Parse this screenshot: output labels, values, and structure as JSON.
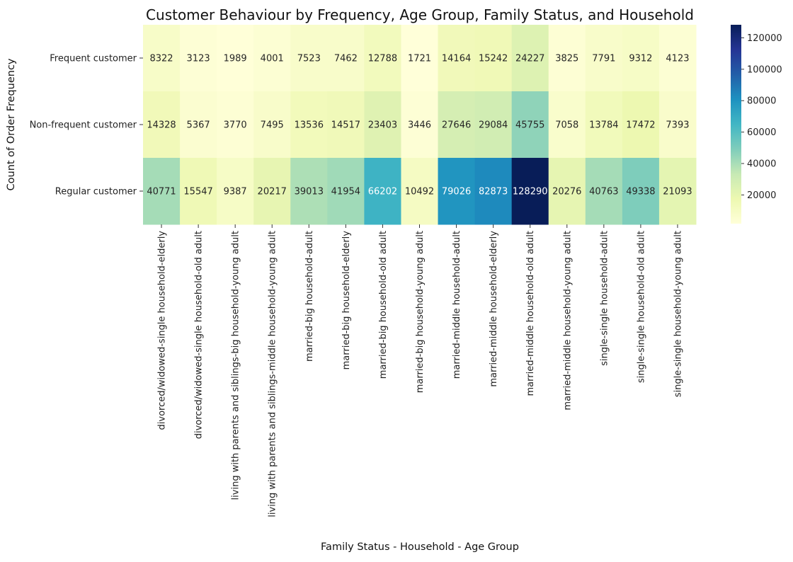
{
  "chart_data": {
    "type": "heatmap",
    "title": "Customer Behaviour by Frequency, Age Group, Family Status, and Household",
    "xlabel": "Family Status - Household - Age Group",
    "ylabel": "Count of Order Frequency",
    "rows": [
      "Frequent customer",
      "Non-frequent customer",
      "Regular customer"
    ],
    "columns": [
      "divorced/widowed-single household-elderly",
      "divorced/widowed-single household-old adult",
      "living with parents and siblings-big household-young adult",
      "living with parents and siblings-middle household-young adult",
      "married-big household-adult",
      "married-big household-elderly",
      "married-big household-old adult",
      "married-big household-young adult",
      "married-middle household-adult",
      "married-middle household-elderly",
      "married-middle household-old adult",
      "married-middle household-young adult",
      "single-single household-adult",
      "single-single household-old adult",
      "single-single household-young adult"
    ],
    "values": [
      [
        8322,
        3123,
        1989,
        4001,
        7523,
        7462,
        12788,
        1721,
        14164,
        15242,
        24227,
        3825,
        7791,
        9312,
        4123
      ],
      [
        14328,
        5367,
        3770,
        7495,
        13536,
        14517,
        23403,
        3446,
        27646,
        29084,
        45755,
        7058,
        13784,
        17472,
        7393
      ],
      [
        40771,
        15547,
        9387,
        20217,
        39013,
        41954,
        66202,
        10492,
        79026,
        82873,
        128290,
        20276,
        40763,
        49338,
        21093
      ]
    ],
    "colormap": "YlGnBu",
    "colorbar": {
      "range": [
        1721,
        128290
      ],
      "ticks": [
        20000,
        40000,
        60000,
        80000,
        100000,
        120000
      ],
      "tick_labels": [
        "20000",
        "40000",
        "60000",
        "80000",
        "100000",
        "120000"
      ]
    }
  }
}
